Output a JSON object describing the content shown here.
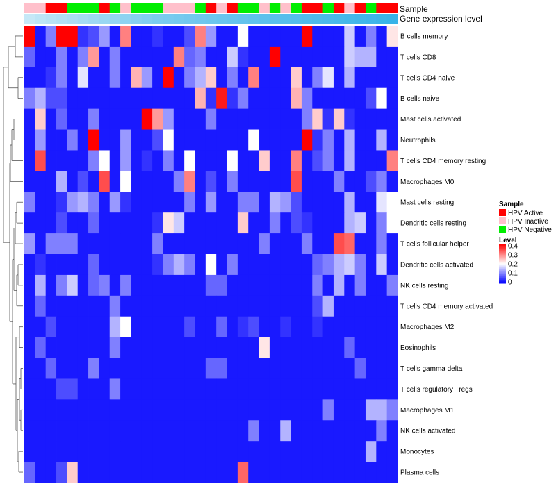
{
  "chart_data": {
    "type": "heatmap",
    "annotation_tracks": [
      "Sample",
      "Gene expression level"
    ],
    "rows": [
      "B cells memory",
      "T cells CD8",
      "T cells CD4 naive",
      "B cells naive",
      "Mast cells activated",
      "Neutrophils",
      "T cells CD4 memory resting",
      "Macrophages M0",
      "Mast cells resting",
      "Dendritic cells resting",
      "T cells follicular helper",
      "Dendritic cells activated",
      "NK cells resting",
      "T cells CD4 memory activated",
      "Macrophages M2",
      "Eosinophils",
      "T cells gamma delta",
      "T cells regulatory  Tregs",
      "Macrophages M1",
      "NK cells activated",
      "Monocytes",
      "Plasma cells"
    ],
    "sample_groups": [
      "Inactive",
      "Inactive",
      "Active",
      "Active",
      "Negative",
      "Negative",
      "Negative",
      "Active",
      "Negative",
      "Inactive",
      "Negative",
      "Negative",
      "Negative",
      "Inactive",
      "Inactive",
      "Inactive",
      "Negative",
      "Active",
      "Inactive",
      "Active",
      "Negative",
      "Negative",
      "Inactive",
      "Negative",
      "Inactive",
      "Negative",
      "Active",
      "Active",
      "Negative",
      "Active",
      "Inactive",
      "Active",
      "Negative",
      "Active",
      "Active"
    ],
    "expression_level": [
      0.05,
      0.08,
      0.1,
      0.12,
      0.14,
      0.16,
      0.18,
      0.2,
      0.22,
      0.24,
      0.26,
      0.28,
      0.3,
      0.31,
      0.32,
      0.33,
      0.34,
      0.35,
      0.36,
      0.37,
      0.38,
      0.39,
      0.4,
      0.41,
      0.42,
      0.43,
      0.44,
      0.45,
      0.46,
      0.47,
      0.48,
      0.49,
      0.5,
      0.51,
      0.52
    ],
    "values": [
      [
        0.4,
        0.02,
        0.1,
        0.4,
        0.4,
        0.04,
        0.06,
        0.12,
        0.02,
        0.3,
        0.02,
        0.02,
        0.04,
        0.02,
        0.02,
        0.06,
        0.3,
        0.12,
        0.02,
        0.02,
        0.2,
        0.02,
        0.02,
        0.02,
        0.02,
        0.02,
        0.4,
        0.02,
        0.02,
        0.02,
        0.16,
        0.02,
        0.1,
        0.02,
        0.22
      ],
      [
        0.08,
        0.02,
        0.02,
        0.1,
        0.02,
        0.1,
        0.28,
        0.02,
        0.1,
        0.02,
        0.02,
        0.02,
        0.02,
        0.02,
        0.3,
        0.08,
        0.1,
        0.02,
        0.02,
        0.16,
        0.04,
        0.02,
        0.02,
        0.4,
        0.02,
        0.02,
        0.02,
        0.02,
        0.02,
        0.02,
        0.16,
        0.14,
        0.14,
        0.02,
        0.02
      ],
      [
        0.02,
        0.02,
        0.04,
        0.1,
        0.02,
        0.18,
        0.02,
        0.02,
        0.1,
        0.02,
        0.26,
        0.12,
        0.02,
        0.4,
        0.02,
        0.1,
        0.14,
        0.24,
        0.02,
        0.1,
        0.02,
        0.3,
        0.02,
        0.02,
        0.02,
        0.24,
        0.02,
        0.1,
        0.18,
        0.02,
        0.14,
        0.02,
        0.02,
        0.02,
        0.02
      ],
      [
        0.1,
        0.14,
        0.06,
        0.06,
        0.02,
        0.02,
        0.02,
        0.02,
        0.02,
        0.02,
        0.02,
        0.02,
        0.02,
        0.02,
        0.02,
        0.02,
        0.26,
        0.04,
        0.38,
        0.04,
        0.1,
        0.02,
        0.02,
        0.02,
        0.02,
        0.26,
        0.1,
        0.02,
        0.02,
        0.02,
        0.02,
        0.02,
        0.06,
        0.2,
        0.02
      ],
      [
        0.02,
        0.24,
        0.02,
        0.08,
        0.02,
        0.02,
        0.1,
        0.02,
        0.02,
        0.02,
        0.02,
        0.4,
        0.28,
        0.12,
        0.02,
        0.02,
        0.02,
        0.1,
        0.02,
        0.02,
        0.02,
        0.02,
        0.02,
        0.02,
        0.02,
        0.02,
        0.1,
        0.24,
        0.04,
        0.24,
        0.04,
        0.02,
        0.02,
        0.02,
        0.02
      ],
      [
        0.02,
        0.12,
        0.02,
        0.02,
        0.1,
        0.02,
        0.4,
        0.02,
        0.02,
        0.12,
        0.02,
        0.02,
        0.06,
        0.2,
        0.02,
        0.02,
        0.02,
        0.02,
        0.02,
        0.02,
        0.02,
        0.2,
        0.02,
        0.02,
        0.02,
        0.02,
        0.4,
        0.04,
        0.1,
        0.02,
        0.14,
        0.02,
        0.02,
        0.14,
        0.02
      ],
      [
        0.02,
        0.34,
        0.02,
        0.02,
        0.02,
        0.02,
        0.1,
        0.2,
        0.02,
        0.12,
        0.02,
        0.04,
        0.02,
        0.1,
        0.02,
        0.2,
        0.02,
        0.02,
        0.02,
        0.2,
        0.02,
        0.02,
        0.24,
        0.02,
        0.02,
        0.3,
        0.02,
        0.06,
        0.1,
        0.02,
        0.14,
        0.02,
        0.02,
        0.02,
        0.3
      ],
      [
        0.02,
        0.02,
        0.02,
        0.14,
        0.02,
        0.06,
        0.02,
        0.34,
        0.02,
        0.2,
        0.02,
        0.02,
        0.02,
        0.02,
        0.1,
        0.3,
        0.02,
        0.06,
        0.02,
        0.1,
        0.02,
        0.02,
        0.02,
        0.02,
        0.02,
        0.34,
        0.02,
        0.02,
        0.02,
        0.1,
        0.02,
        0.02,
        0.06,
        0.1,
        0.02
      ],
      [
        0.1,
        0.02,
        0.02,
        0.04,
        0.12,
        0.14,
        0.1,
        0.02,
        0.12,
        0.04,
        0.02,
        0.02,
        0.02,
        0.02,
        0.02,
        0.1,
        0.02,
        0.12,
        0.02,
        0.02,
        0.1,
        0.1,
        0.02,
        0.14,
        0.12,
        0.06,
        0.02,
        0.02,
        0.02,
        0.02,
        0.14,
        0.02,
        0.02,
        0.18,
        0.2
      ],
      [
        0.02,
        0.02,
        0.02,
        0.06,
        0.02,
        0.02,
        0.08,
        0.02,
        0.02,
        0.02,
        0.02,
        0.02,
        0.04,
        0.22,
        0.16,
        0.02,
        0.02,
        0.02,
        0.02,
        0.02,
        0.24,
        0.02,
        0.02,
        0.1,
        0.02,
        0.06,
        0.04,
        0.02,
        0.02,
        0.02,
        0.14,
        0.16,
        0.02,
        0.1,
        0.2
      ],
      [
        0.12,
        0.02,
        0.1,
        0.1,
        0.1,
        0.02,
        0.02,
        0.02,
        0.02,
        0.02,
        0.02,
        0.02,
        0.1,
        0.02,
        0.02,
        0.02,
        0.02,
        0.02,
        0.02,
        0.02,
        0.02,
        0.02,
        0.1,
        0.02,
        0.02,
        0.02,
        0.1,
        0.02,
        0.02,
        0.34,
        0.32,
        0.02,
        0.02,
        0.1,
        0.02
      ],
      [
        0.02,
        0.04,
        0.02,
        0.02,
        0.02,
        0.02,
        0.08,
        0.02,
        0.02,
        0.02,
        0.02,
        0.02,
        0.04,
        0.1,
        0.14,
        0.1,
        0.02,
        0.2,
        0.02,
        0.1,
        0.02,
        0.02,
        0.02,
        0.02,
        0.02,
        0.02,
        0.02,
        0.08,
        0.1,
        0.14,
        0.16,
        0.1,
        0.02,
        0.16,
        0.02
      ],
      [
        0.02,
        0.14,
        0.02,
        0.1,
        0.16,
        0.02,
        0.08,
        0.1,
        0.02,
        0.1,
        0.02,
        0.02,
        0.02,
        0.02,
        0.02,
        0.02,
        0.02,
        0.08,
        0.08,
        0.02,
        0.02,
        0.02,
        0.02,
        0.02,
        0.02,
        0.02,
        0.02,
        0.1,
        0.02,
        0.14,
        0.02,
        0.1,
        0.02,
        0.02,
        0.1
      ],
      [
        0.02,
        0.08,
        0.02,
        0.02,
        0.02,
        0.02,
        0.02,
        0.02,
        0.1,
        0.02,
        0.02,
        0.02,
        0.02,
        0.02,
        0.02,
        0.02,
        0.02,
        0.02,
        0.02,
        0.02,
        0.02,
        0.02,
        0.02,
        0.02,
        0.02,
        0.02,
        0.02,
        0.06,
        0.14,
        0.02,
        0.02,
        0.02,
        0.02,
        0.02,
        0.02
      ],
      [
        0.02,
        0.02,
        0.06,
        0.02,
        0.02,
        0.02,
        0.02,
        0.02,
        0.14,
        0.2,
        0.02,
        0.02,
        0.02,
        0.02,
        0.02,
        0.06,
        0.02,
        0.02,
        0.08,
        0.02,
        0.04,
        0.06,
        0.02,
        0.02,
        0.04,
        0.02,
        0.02,
        0.04,
        0.02,
        0.02,
        0.02,
        0.02,
        0.02,
        0.02,
        0.02
      ],
      [
        0.02,
        0.08,
        0.02,
        0.02,
        0.02,
        0.02,
        0.02,
        0.02,
        0.1,
        0.02,
        0.02,
        0.02,
        0.02,
        0.02,
        0.02,
        0.02,
        0.02,
        0.02,
        0.02,
        0.02,
        0.02,
        0.02,
        0.22,
        0.02,
        0.02,
        0.02,
        0.02,
        0.02,
        0.02,
        0.02,
        0.08,
        0.02,
        0.02,
        0.02,
        0.02
      ],
      [
        0.02,
        0.02,
        0.08,
        0.02,
        0.02,
        0.02,
        0.1,
        0.02,
        0.02,
        0.02,
        0.02,
        0.02,
        0.02,
        0.02,
        0.02,
        0.02,
        0.02,
        0.08,
        0.08,
        0.02,
        0.02,
        0.02,
        0.02,
        0.02,
        0.02,
        0.02,
        0.02,
        0.02,
        0.02,
        0.02,
        0.02,
        0.08,
        0.02,
        0.02,
        0.02
      ],
      [
        0.02,
        0.02,
        0.02,
        0.06,
        0.06,
        0.02,
        0.02,
        0.02,
        0.1,
        0.02,
        0.02,
        0.02,
        0.02,
        0.02,
        0.02,
        0.02,
        0.02,
        0.02,
        0.02,
        0.02,
        0.02,
        0.02,
        0.02,
        0.02,
        0.02,
        0.02,
        0.02,
        0.02,
        0.02,
        0.02,
        0.02,
        0.02,
        0.02,
        0.02,
        0.02
      ],
      [
        0.02,
        0.02,
        0.02,
        0.02,
        0.02,
        0.02,
        0.02,
        0.02,
        0.02,
        0.02,
        0.02,
        0.02,
        0.02,
        0.02,
        0.02,
        0.02,
        0.02,
        0.02,
        0.02,
        0.02,
        0.02,
        0.02,
        0.02,
        0.02,
        0.02,
        0.02,
        0.02,
        0.02,
        0.1,
        0.02,
        0.02,
        0.02,
        0.14,
        0.14,
        0.1
      ],
      [
        0.02,
        0.02,
        0.02,
        0.02,
        0.02,
        0.02,
        0.02,
        0.02,
        0.02,
        0.02,
        0.02,
        0.02,
        0.02,
        0.02,
        0.02,
        0.02,
        0.02,
        0.02,
        0.02,
        0.02,
        0.02,
        0.1,
        0.02,
        0.02,
        0.14,
        0.02,
        0.02,
        0.02,
        0.02,
        0.02,
        0.02,
        0.02,
        0.02,
        0.1,
        0.02
      ],
      [
        0.02,
        0.02,
        0.02,
        0.02,
        0.02,
        0.02,
        0.02,
        0.02,
        0.02,
        0.02,
        0.02,
        0.02,
        0.02,
        0.02,
        0.02,
        0.02,
        0.02,
        0.02,
        0.02,
        0.02,
        0.02,
        0.02,
        0.02,
        0.02,
        0.02,
        0.02,
        0.02,
        0.02,
        0.02,
        0.02,
        0.02,
        0.02,
        0.14,
        0.02,
        0.02
      ],
      [
        0.08,
        0.02,
        0.02,
        0.06,
        0.24,
        0.02,
        0.02,
        0.02,
        0.02,
        0.02,
        0.02,
        0.02,
        0.02,
        0.02,
        0.02,
        0.02,
        0.02,
        0.02,
        0.02,
        0.02,
        0.32,
        0.02,
        0.02,
        0.02,
        0.02,
        0.02,
        0.02,
        0.02,
        0.02,
        0.02,
        0.02,
        0.02,
        0.02,
        0.02,
        0.02
      ]
    ],
    "legend_sample": {
      "title": "Sample",
      "items": [
        {
          "label": "HPV Active",
          "color": "#ff0000"
        },
        {
          "label": "HPV Inactive",
          "color": "#ffc0cb"
        },
        {
          "label": "HPV Negative",
          "color": "#00ee00"
        }
      ]
    },
    "legend_level": {
      "title": "Level",
      "ticks": [
        "0.4",
        "0.3",
        "0.2",
        "0.1",
        "0"
      ],
      "range": [
        0,
        0.4
      ]
    },
    "colors": {
      "low": "#0000ff",
      "mid": "#ffffff",
      "high": "#ff0000",
      "expr_low": "#c6e8f7",
      "expr_high": "#39b3e8"
    }
  }
}
